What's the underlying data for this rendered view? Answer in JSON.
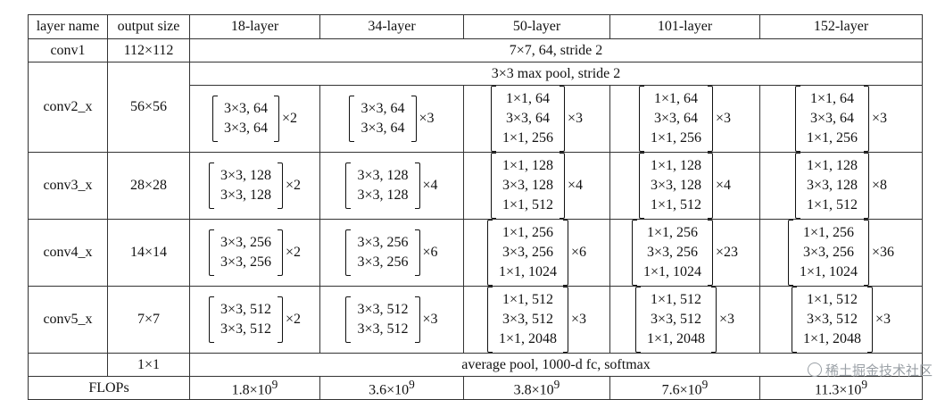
{
  "header": [
    "layer name",
    "output size",
    "18-layer",
    "34-layer",
    "50-layer",
    "101-layer",
    "152-layer"
  ],
  "conv1": {
    "name": "conv1",
    "size": "112×112",
    "spec": "7×7, 64, stride 2"
  },
  "pool": {
    "spec": "3×3 max pool, stride 2"
  },
  "stages": [
    {
      "name": "conv2_x",
      "size": "56×56",
      "cols": [
        {
          "lines": [
            "3×3, 64",
            "3×3, 64"
          ],
          "mult": "×2"
        },
        {
          "lines": [
            "3×3, 64",
            "3×3, 64"
          ],
          "mult": "×3"
        },
        {
          "lines": [
            "1×1, 64",
            "3×3, 64",
            "1×1, 256"
          ],
          "mult": "×3"
        },
        {
          "lines": [
            "1×1, 64",
            "3×3, 64",
            "1×1, 256"
          ],
          "mult": "×3"
        },
        {
          "lines": [
            "1×1, 64",
            "3×3, 64",
            "1×1, 256"
          ],
          "mult": "×3"
        }
      ]
    },
    {
      "name": "conv3_x",
      "size": "28×28",
      "cols": [
        {
          "lines": [
            "3×3, 128",
            "3×3, 128"
          ],
          "mult": "×2"
        },
        {
          "lines": [
            "3×3, 128",
            "3×3, 128"
          ],
          "mult": "×4"
        },
        {
          "lines": [
            "1×1, 128",
            "3×3, 128",
            "1×1, 512"
          ],
          "mult": "×4"
        },
        {
          "lines": [
            "1×1, 128",
            "3×3, 128",
            "1×1, 512"
          ],
          "mult": "×4"
        },
        {
          "lines": [
            "1×1, 128",
            "3×3, 128",
            "1×1, 512"
          ],
          "mult": "×8"
        }
      ]
    },
    {
      "name": "conv4_x",
      "size": "14×14",
      "cols": [
        {
          "lines": [
            "3×3, 256",
            "3×3, 256"
          ],
          "mult": "×2"
        },
        {
          "lines": [
            "3×3, 256",
            "3×3, 256"
          ],
          "mult": "×6"
        },
        {
          "lines": [
            "1×1, 256",
            "3×3, 256",
            "1×1, 1024"
          ],
          "mult": "×6"
        },
        {
          "lines": [
            "1×1, 256",
            "3×3, 256",
            "1×1, 1024"
          ],
          "mult": "×23"
        },
        {
          "lines": [
            "1×1, 256",
            "3×3, 256",
            "1×1, 1024"
          ],
          "mult": "×36"
        }
      ]
    },
    {
      "name": "conv5_x",
      "size": "7×7",
      "cols": [
        {
          "lines": [
            "3×3, 512",
            "3×3, 512"
          ],
          "mult": "×2"
        },
        {
          "lines": [
            "3×3, 512",
            "3×3, 512"
          ],
          "mult": "×3"
        },
        {
          "lines": [
            "1×1, 512",
            "3×3, 512",
            "1×1, 2048"
          ],
          "mult": "×3"
        },
        {
          "lines": [
            "1×1, 512",
            "3×3, 512",
            "1×1, 2048"
          ],
          "mult": "×3"
        },
        {
          "lines": [
            "1×1, 512",
            "3×3, 512",
            "1×1, 2048"
          ],
          "mult": "×3"
        }
      ]
    }
  ],
  "avg": {
    "size": "1×1",
    "spec": "average pool, 1000-d fc, softmax"
  },
  "flops": {
    "label": "FLOPs",
    "mantissa": [
      "1.8",
      "3.6",
      "3.8",
      "7.6",
      "11.3"
    ],
    "times": "×10",
    "exp": "9"
  },
  "watermark": "稀土掘金技术社区"
}
